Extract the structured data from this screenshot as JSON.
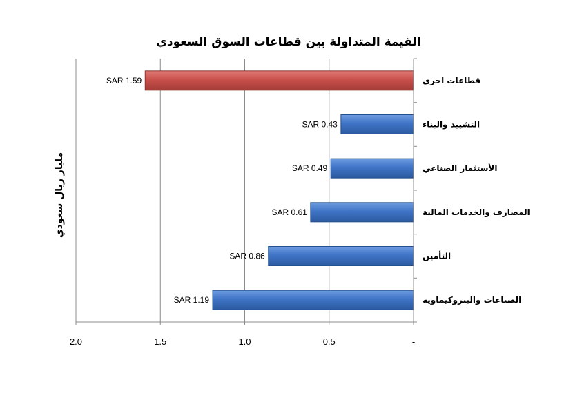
{
  "chart_data": {
    "type": "bar",
    "orientation": "horizontal",
    "x_axis_reversed": true,
    "title": "القيمة المتداولة بين قطاعات السوق السعودي",
    "ylabel": "مليار ريال سعودي",
    "xlabel": "",
    "xlim": [
      0,
      2.0
    ],
    "x_ticks": [
      "2.0",
      "1.5",
      "1.0",
      "0.5",
      "-"
    ],
    "categories": [
      "قطاعات اخرى",
      "التشييد والبناء",
      "الأستثمار الصناعي",
      "المصارف والخدمات المالية",
      "التأمين",
      "الصناعات والبتروكيماوية"
    ],
    "values": [
      1.59,
      0.43,
      0.49,
      0.61,
      0.86,
      1.19
    ],
    "data_labels": [
      "SAR 1.59",
      "SAR 0.43",
      "SAR 0.49",
      "SAR 0.61",
      "SAR 0.86",
      "SAR 1.19"
    ],
    "bar_colors": [
      "#c0504d",
      "#4a7ebb",
      "#4a7ebb",
      "#4a7ebb",
      "#4a7ebb",
      "#4a7ebb"
    ],
    "grid": "vertical gridlines",
    "legend": "none"
  }
}
